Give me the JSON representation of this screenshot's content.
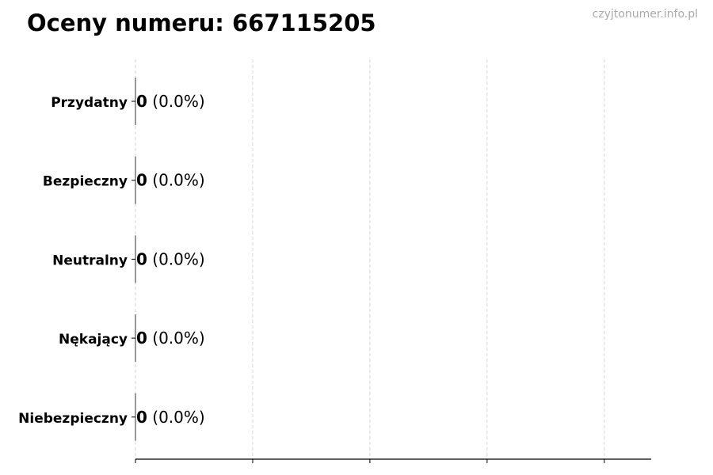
{
  "title": "Oceny numeru: 667115205",
  "watermark": "czyjtonumer.info.pl",
  "chart_data": {
    "type": "bar",
    "orientation": "horizontal",
    "title": "Oceny numeru: 667115205",
    "categories": [
      "Przydatny",
      "Bezpieczny",
      "Neutralny",
      "Nękający",
      "Niebezpieczny"
    ],
    "values": [
      0,
      0,
      0,
      0,
      0
    ],
    "labels": [
      "(0.0%)",
      "(0.0%)",
      "(0.0%)",
      "(0.0%)",
      "(0.0%)"
    ],
    "xlim": [
      0,
      4.4
    ],
    "xticks": [
      0,
      1,
      2,
      3,
      4
    ],
    "xtick_labels_shown": false,
    "grid": "x, dashed",
    "xlabel": "",
    "ylabel": ""
  }
}
